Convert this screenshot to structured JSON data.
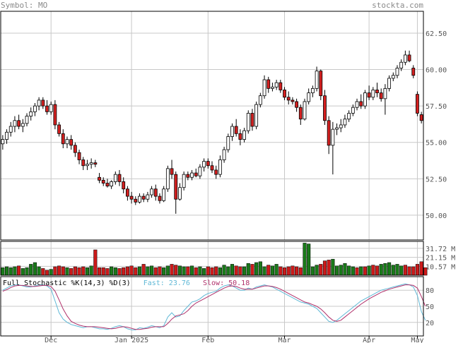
{
  "header": {
    "symbol_label": "Symbol: MO",
    "site": "stockta.com"
  },
  "colors": {
    "up": "#ffffff",
    "down": "#d42020",
    "vol_up": "#1a7a1a",
    "vol_down": "#cc1a1a",
    "grid": "#c8c8c8",
    "fast": "#5fb8d6",
    "slow": "#b0306a",
    "frame": "#000000"
  },
  "chart_data": [
    {
      "type": "candlestick",
      "grid": true,
      "ylim": [
        48.3,
        64.0
      ],
      "yticks": [
        "62.50",
        "60.00",
        "57.50",
        "55.00",
        "52.50",
        "50.00"
      ],
      "x_ticks": [
        "Dec",
        "Jan 2025",
        "Feb",
        "Mar",
        "Apr",
        "May"
      ],
      "ohlc": [
        [
          54.9,
          55.5,
          54.5,
          55.2
        ],
        [
          55.2,
          55.9,
          54.9,
          55.7
        ],
        [
          55.7,
          56.4,
          55.4,
          56.1
        ],
        [
          56.1,
          56.8,
          55.7,
          56.5
        ],
        [
          56.5,
          56.9,
          55.9,
          56.1
        ],
        [
          56.1,
          56.6,
          55.7,
          56.3
        ],
        [
          56.3,
          57.0,
          56.1,
          56.8
        ],
        [
          56.8,
          57.4,
          56.5,
          57.1
        ],
        [
          57.1,
          57.7,
          56.8,
          57.5
        ],
        [
          57.5,
          58.1,
          57.2,
          57.9
        ],
        [
          57.9,
          58.1,
          57.3,
          57.5
        ],
        [
          57.5,
          57.9,
          56.9,
          57.1
        ],
        [
          57.1,
          57.8,
          56.9,
          57.6
        ],
        [
          57.6,
          57.9,
          55.9,
          56.2
        ],
        [
          56.2,
          56.4,
          55.4,
          55.6
        ],
        [
          55.6,
          55.9,
          54.6,
          54.9
        ],
        [
          54.9,
          55.4,
          54.6,
          55.2
        ],
        [
          55.2,
          55.5,
          54.5,
          54.8
        ],
        [
          54.8,
          55.0,
          54.0,
          54.3
        ],
        [
          54.3,
          54.5,
          53.5,
          53.8
        ],
        [
          53.8,
          54.0,
          53.1,
          53.4
        ],
        [
          53.4,
          53.8,
          53.1,
          53.5
        ],
        [
          53.5,
          53.9,
          53.2,
          53.6
        ],
        [
          53.6,
          53.8,
          53.3,
          53.5
        ],
        [
          52.6,
          52.9,
          52.2,
          52.4
        ],
        [
          52.4,
          52.6,
          52.0,
          52.2
        ],
        [
          52.2,
          52.5,
          51.9,
          52.0
        ],
        [
          52.0,
          52.4,
          51.8,
          52.3
        ],
        [
          52.3,
          53.0,
          52.1,
          52.8
        ],
        [
          52.8,
          53.1,
          52.0,
          52.3
        ],
        [
          52.3,
          52.6,
          51.5,
          51.8
        ],
        [
          51.8,
          52.0,
          51.0,
          51.3
        ],
        [
          51.3,
          51.6,
          50.8,
          51.1
        ],
        [
          51.1,
          51.3,
          50.7,
          50.9
        ],
        [
          50.9,
          51.5,
          50.8,
          51.3
        ],
        [
          51.3,
          51.5,
          50.9,
          51.1
        ],
        [
          51.1,
          51.6,
          50.9,
          51.4
        ],
        [
          51.4,
          52.0,
          51.2,
          51.8
        ],
        [
          51.8,
          52.1,
          51.0,
          51.3
        ],
        [
          51.3,
          51.5,
          50.8,
          51.0
        ],
        [
          51.0,
          52.0,
          50.9,
          51.8
        ],
        [
          51.8,
          53.4,
          51.6,
          53.2
        ],
        [
          53.2,
          53.8,
          52.5,
          52.8
        ],
        [
          52.8,
          53.0,
          50.1,
          51.1
        ],
        [
          51.1,
          52.2,
          51.0,
          51.9
        ],
        [
          51.9,
          53.0,
          51.7,
          52.8
        ],
        [
          52.8,
          53.0,
          52.4,
          52.6
        ],
        [
          52.6,
          53.1,
          52.4,
          52.9
        ],
        [
          52.9,
          53.2,
          52.6,
          52.7
        ],
        [
          52.7,
          53.5,
          52.5,
          53.3
        ],
        [
          53.3,
          53.9,
          53.0,
          53.7
        ],
        [
          53.7,
          53.9,
          53.2,
          53.4
        ],
        [
          53.4,
          53.7,
          52.9,
          53.1
        ],
        [
          53.1,
          53.4,
          52.5,
          52.8
        ],
        [
          52.8,
          54.1,
          52.6,
          53.8
        ],
        [
          53.8,
          54.7,
          53.6,
          54.5
        ],
        [
          54.5,
          55.6,
          54.3,
          55.4
        ],
        [
          55.4,
          56.3,
          55.1,
          56.1
        ],
        [
          56.1,
          56.6,
          55.4,
          55.6
        ],
        [
          55.6,
          55.9,
          54.8,
          55.2
        ],
        [
          55.2,
          56.0,
          55.0,
          55.8
        ],
        [
          55.8,
          57.2,
          55.6,
          57.0
        ],
        [
          57.0,
          57.3,
          55.8,
          56.1
        ],
        [
          56.1,
          57.8,
          55.9,
          57.6
        ],
        [
          57.6,
          58.4,
          57.4,
          58.2
        ],
        [
          58.2,
          59.6,
          58.0,
          59.3
        ],
        [
          59.3,
          59.5,
          58.4,
          58.7
        ],
        [
          58.7,
          59.1,
          58.5,
          58.8
        ],
        [
          58.8,
          59.3,
          58.6,
          59.1
        ],
        [
          59.1,
          59.3,
          58.4,
          58.6
        ],
        [
          58.6,
          58.8,
          57.9,
          58.1
        ],
        [
          58.1,
          58.5,
          57.6,
          57.9
        ],
        [
          57.9,
          58.1,
          57.6,
          57.8
        ],
        [
          57.8,
          58.0,
          57.1,
          57.4
        ],
        [
          57.4,
          57.6,
          56.2,
          56.6
        ],
        [
          56.6,
          58.0,
          56.5,
          57.8
        ],
        [
          57.8,
          58.7,
          57.6,
          58.4
        ],
        [
          58.4,
          58.9,
          58.1,
          58.7
        ],
        [
          58.7,
          60.2,
          58.5,
          59.9
        ],
        [
          59.9,
          60.0,
          57.9,
          58.2
        ],
        [
          58.2,
          58.6,
          56.2,
          56.5
        ],
        [
          56.5,
          56.8,
          54.2,
          54.8
        ],
        [
          54.8,
          56.4,
          52.8,
          55.9
        ],
        [
          55.9,
          56.3,
          55.5,
          56.0
        ],
        [
          56.0,
          56.6,
          55.7,
          56.2
        ],
        [
          56.2,
          56.9,
          56.0,
          56.6
        ],
        [
          56.6,
          57.2,
          56.4,
          57.0
        ],
        [
          57.0,
          57.6,
          56.8,
          57.4
        ],
        [
          57.4,
          58.0,
          57.2,
          57.8
        ],
        [
          57.8,
          58.3,
          57.3,
          57.5
        ],
        [
          57.5,
          58.6,
          57.3,
          58.4
        ],
        [
          58.4,
          58.9,
          57.9,
          58.1
        ],
        [
          58.1,
          58.8,
          57.9,
          58.6
        ],
        [
          58.6,
          59.1,
          58.1,
          58.4
        ],
        [
          58.4,
          58.7,
          57.8,
          58.0
        ],
        [
          58.0,
          59.0,
          56.9,
          58.7
        ],
        [
          58.7,
          59.6,
          58.5,
          59.4
        ],
        [
          59.4,
          59.8,
          59.2,
          59.6
        ],
        [
          59.6,
          60.3,
          59.4,
          60.1
        ],
        [
          60.1,
          60.7,
          59.9,
          60.5
        ],
        [
          60.5,
          61.3,
          60.3,
          61.0
        ],
        [
          61.0,
          61.3,
          60.5,
          60.6
        ],
        [
          60.1,
          60.3,
          59.4,
          59.6
        ],
        [
          58.3,
          58.5,
          56.8,
          57.0
        ],
        [
          56.9,
          57.1,
          56.3,
          56.5
        ]
      ]
    },
    {
      "type": "bar",
      "title": "volume",
      "yticks": [
        "31.72 M",
        "21.15 M",
        "10.57 M"
      ],
      "ylim": [
        0,
        40
      ],
      "values": [
        9,
        10,
        9,
        10,
        11,
        8,
        9,
        13,
        15,
        10,
        8,
        6,
        7,
        10,
        11,
        10,
        9,
        8,
        10,
        9,
        10,
        9,
        11,
        30,
        9,
        9,
        8,
        10,
        9,
        8,
        9,
        10,
        11,
        9,
        10,
        13,
        10,
        11,
        9,
        10,
        9,
        11,
        13,
        12,
        11,
        10,
        10,
        11,
        9,
        10,
        8,
        10,
        9,
        10,
        9,
        12,
        10,
        13,
        11,
        10,
        10,
        14,
        13,
        15,
        16,
        10,
        12,
        11,
        13,
        10,
        9,
        10,
        11,
        10,
        9,
        38,
        37,
        10,
        12,
        13,
        17,
        18,
        19,
        11,
        12,
        14,
        11,
        10,
        9,
        10,
        10,
        11,
        12,
        11,
        13,
        14,
        15,
        12,
        13,
        11,
        12,
        10,
        10,
        13,
        16,
        9
      ],
      "up": [
        1,
        1,
        1,
        1,
        0,
        1,
        1,
        1,
        1,
        1,
        0,
        0,
        1,
        0,
        0,
        0,
        1,
        0,
        0,
        0,
        0,
        1,
        1,
        0,
        0,
        0,
        0,
        1,
        1,
        0,
        0,
        0,
        0,
        0,
        1,
        0,
        1,
        1,
        0,
        0,
        1,
        1,
        0,
        0,
        1,
        1,
        0,
        1,
        0,
        1,
        1,
        0,
        0,
        0,
        1,
        1,
        1,
        1,
        0,
        0,
        1,
        1,
        0,
        1,
        1,
        1,
        0,
        1,
        1,
        0,
        0,
        0,
        0,
        0,
        0,
        1,
        1,
        1,
        1,
        0,
        0,
        0,
        1,
        1,
        1,
        1,
        1,
        1,
        0,
        1,
        0,
        1,
        0,
        0,
        1,
        1,
        1,
        1,
        1,
        1,
        0,
        0,
        0,
        0,
        0
      ]
    },
    {
      "type": "line",
      "title": "Full Stochastic %K(14,3) %D(3)",
      "fast_label": "Fast: 23.76",
      "slow_label": "Slow: 50.18",
      "yticks": [
        "80",
        "50",
        "20"
      ],
      "ylim": [
        0,
        100
      ],
      "series": [
        {
          "name": "Fast",
          "values": [
            80,
            84,
            88,
            90,
            90,
            88,
            86,
            86,
            88,
            90,
            90,
            88,
            82,
            60,
            38,
            26,
            20,
            16,
            14,
            12,
            10,
            12,
            12,
            10,
            8,
            8,
            7,
            9,
            12,
            14,
            12,
            8,
            6,
            6,
            10,
            9,
            11,
            14,
            12,
            10,
            14,
            30,
            38,
            30,
            32,
            42,
            50,
            58,
            60,
            64,
            70,
            74,
            76,
            78,
            84,
            88,
            90,
            88,
            84,
            80,
            80,
            84,
            82,
            86,
            88,
            90,
            88,
            86,
            82,
            78,
            74,
            70,
            66,
            62,
            58,
            56,
            54,
            50,
            46,
            38,
            30,
            22,
            20,
            24,
            30,
            36,
            42,
            48,
            54,
            60,
            64,
            68,
            72,
            76,
            80,
            82,
            84,
            86,
            88,
            90,
            92,
            90,
            86,
            70,
            40,
            24
          ]
        },
        {
          "name": "Slow",
          "values": [
            78,
            81,
            85,
            88,
            89,
            89,
            88,
            87,
            87,
            88,
            89,
            89,
            87,
            78,
            62,
            45,
            32,
            22,
            18,
            15,
            13,
            12,
            12,
            12,
            11,
            10,
            9,
            8,
            9,
            11,
            12,
            11,
            9,
            7,
            7,
            8,
            9,
            11,
            12,
            12,
            12,
            18,
            26,
            32,
            34,
            36,
            42,
            50,
            56,
            60,
            64,
            68,
            72,
            76,
            80,
            84,
            87,
            88,
            87,
            84,
            82,
            82,
            82,
            84,
            86,
            88,
            88,
            87,
            85,
            82,
            78,
            74,
            70,
            66,
            62,
            58,
            56,
            53,
            50,
            45,
            38,
            30,
            24,
            22,
            24,
            30,
            36,
            42,
            48,
            54,
            59,
            64,
            68,
            72,
            76,
            79,
            82,
            84,
            86,
            88,
            90,
            90,
            89,
            84,
            68,
            50
          ]
        }
      ]
    }
  ]
}
